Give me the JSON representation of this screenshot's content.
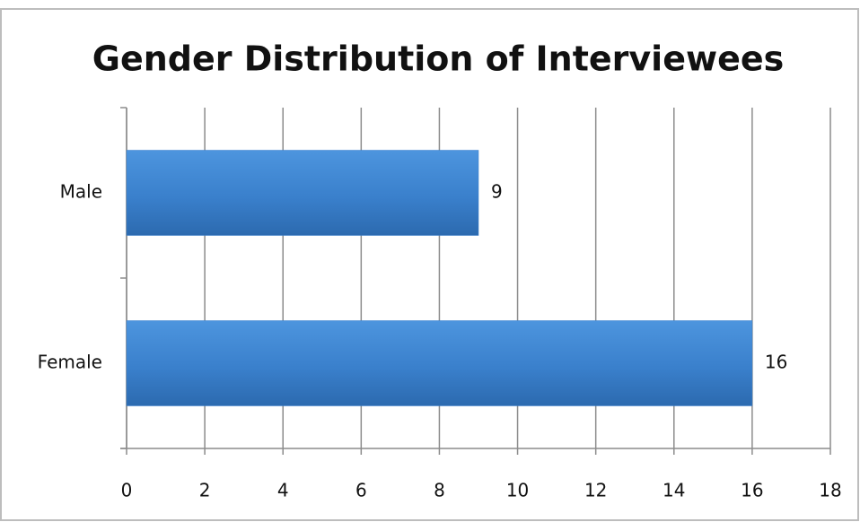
{
  "chart_data": {
    "type": "bar",
    "orientation": "horizontal",
    "title": "Gender Distribution of Interviewees",
    "categories": [
      "Male",
      "Female"
    ],
    "values": [
      9,
      16
    ],
    "color": "#3a80cc",
    "xlim": [
      0,
      18
    ],
    "xticks": [
      0,
      2,
      4,
      6,
      8,
      10,
      12,
      14,
      16,
      18
    ],
    "grid": true
  }
}
